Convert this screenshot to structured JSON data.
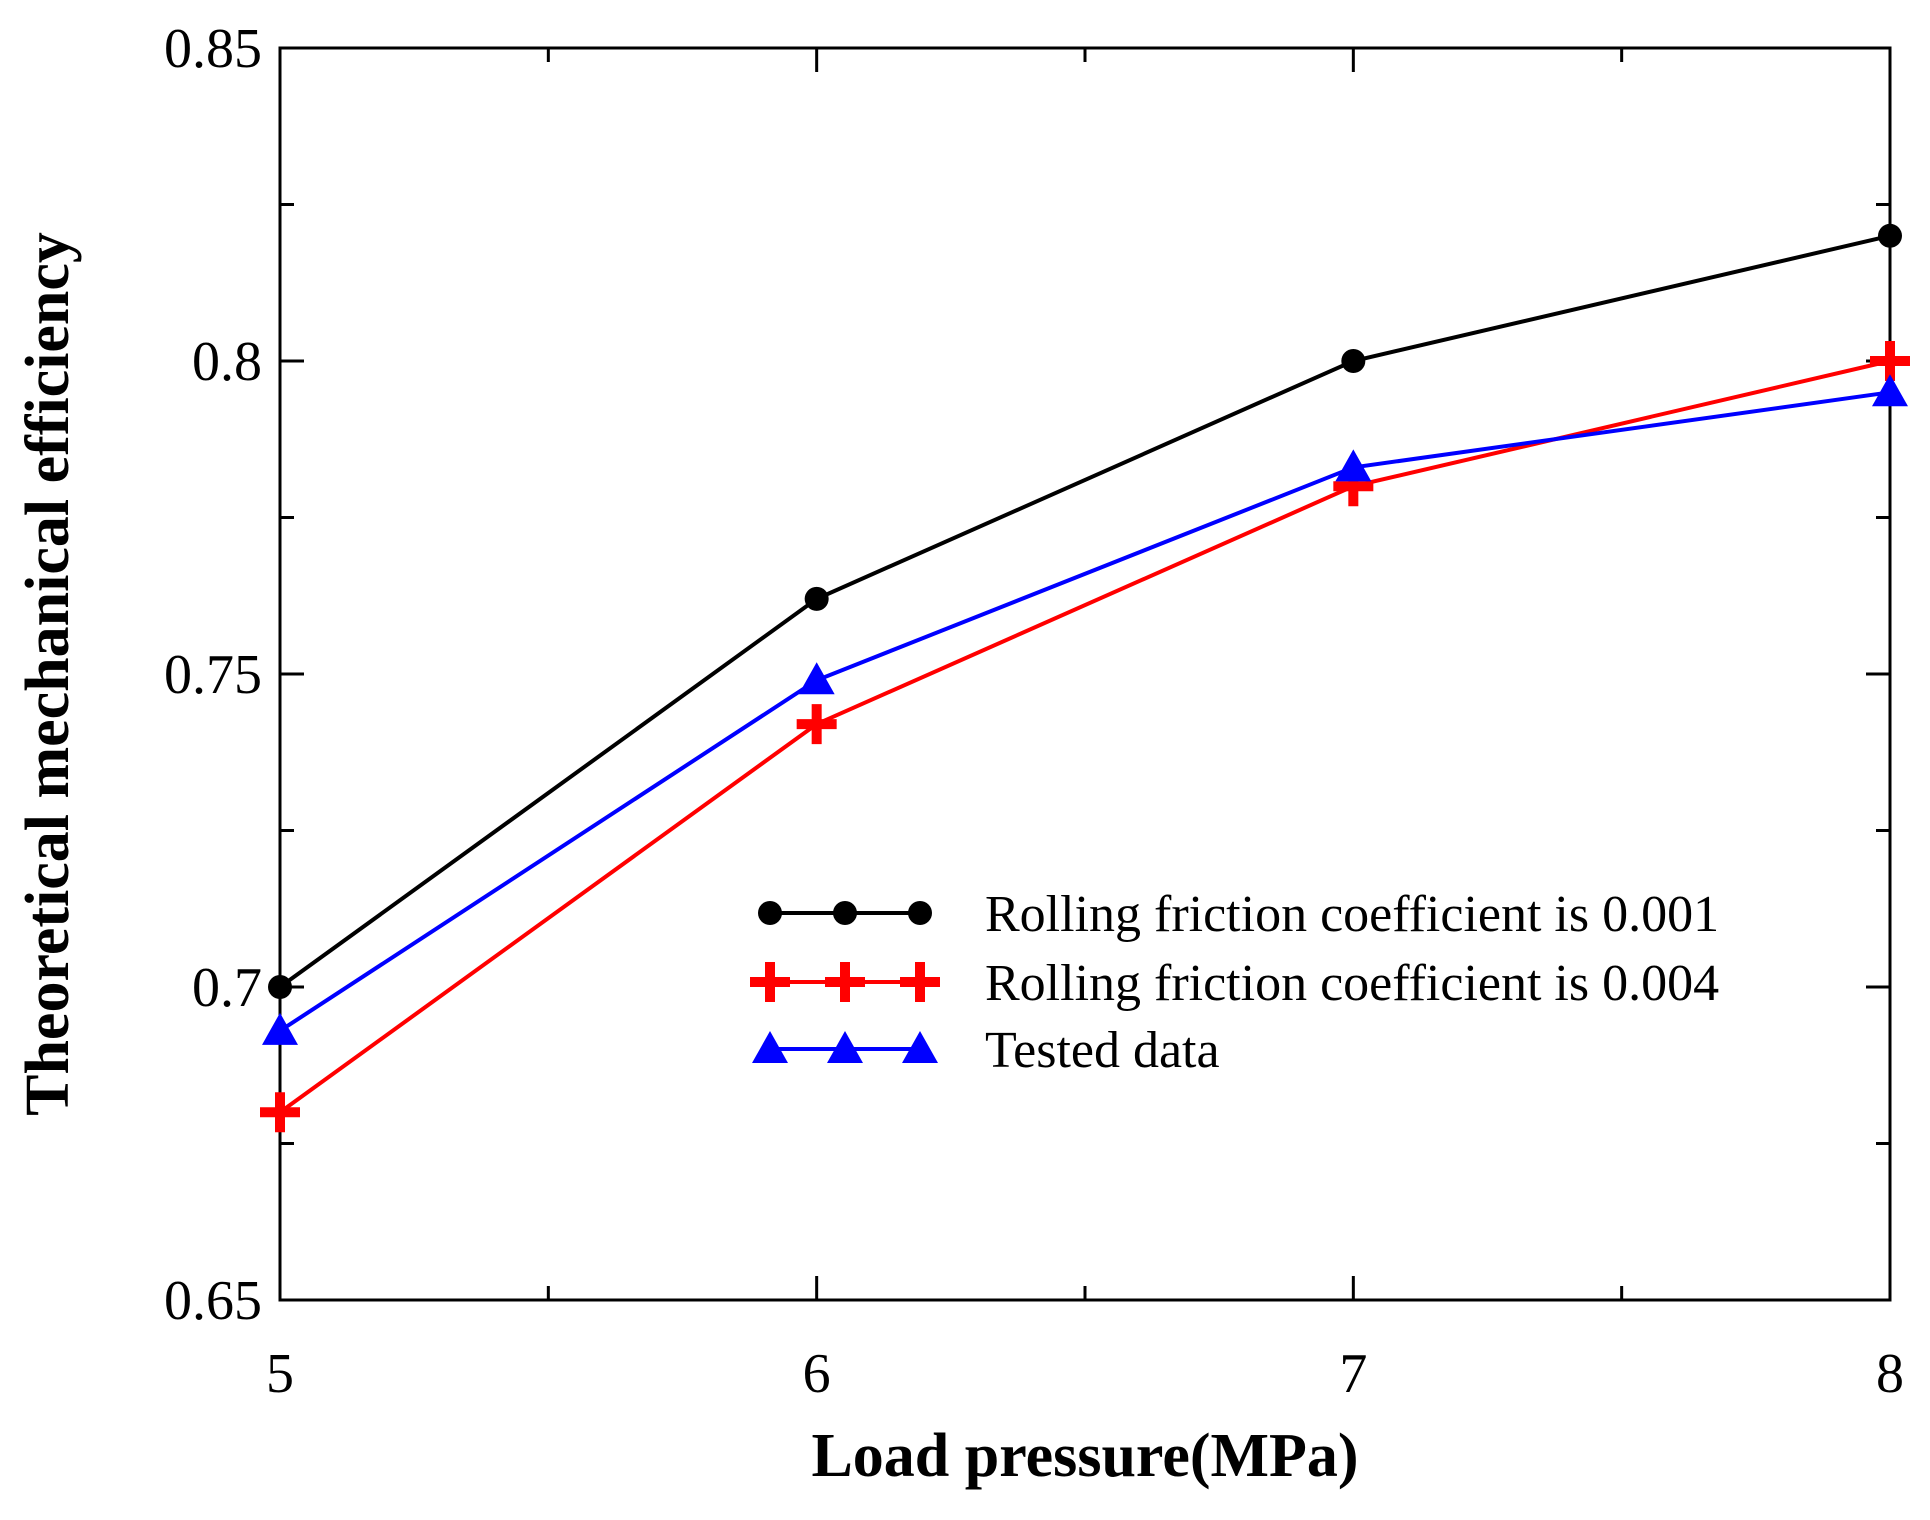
{
  "chart_data": {
    "type": "line",
    "title": "",
    "xlabel": "Load pressure(MPa)",
    "ylabel": "Theoretical mechanical efficiency",
    "xlim": [
      5,
      8
    ],
    "ylim": [
      0.65,
      0.85
    ],
    "x_ticks": [
      5,
      6,
      7,
      8
    ],
    "x_tick_labels": [
      "5",
      "6",
      "7",
      "8"
    ],
    "x_minor_ticks": [
      5.5,
      6.5,
      7.5
    ],
    "y_ticks": [
      0.65,
      0.7,
      0.75,
      0.8,
      0.85
    ],
    "y_tick_labels": [
      "0.65",
      "0.7",
      "0.75",
      "0.8",
      "0.85"
    ],
    "y_minor_ticks": [
      0.675,
      0.725,
      0.775,
      0.825
    ],
    "grid": false,
    "legend_position": "center-right",
    "x": [
      5,
      6,
      7,
      8
    ],
    "series": [
      {
        "name": "Rolling friction coefficient is 0.001",
        "values": [
          0.7,
          0.762,
          0.8,
          0.82
        ],
        "color": "#000000",
        "marker": "circle"
      },
      {
        "name": "Rolling friction coefficient is 0.004",
        "values": [
          0.68,
          0.742,
          0.78,
          0.8
        ],
        "color": "#ff0000",
        "marker": "plus"
      },
      {
        "name": "Tested data",
        "values": [
          0.693,
          0.749,
          0.783,
          0.795
        ],
        "color": "#0000ff",
        "marker": "triangle"
      }
    ]
  }
}
